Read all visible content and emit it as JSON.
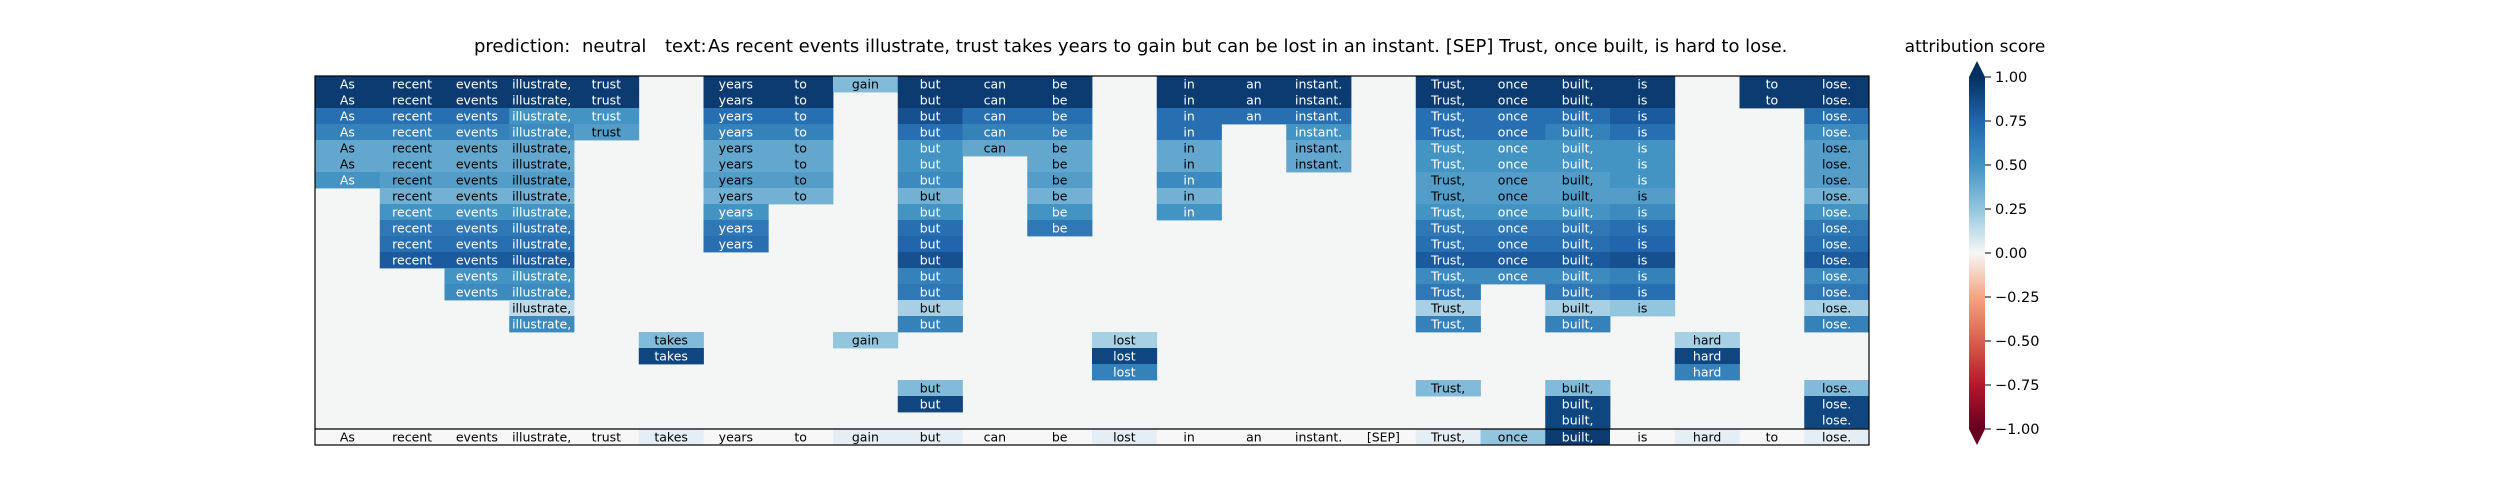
{
  "header": {
    "prediction_label": "prediction:",
    "prediction_value": "neutral",
    "text_label": "text:",
    "text_value": "As recent events illustrate, trust takes years to gain but can be lost in an instant. [SEP] Trust, once built, is hard to lose."
  },
  "chart_data": {
    "type": "heatmap",
    "tokens": [
      "As",
      "recent",
      "events",
      "illustrate,",
      "trust",
      "takes",
      "years",
      "to",
      "gain",
      "but",
      "can",
      "be",
      "lost",
      "in",
      "an",
      "instant.",
      "[SEP]",
      "Trust,",
      "once",
      "built,",
      "is",
      "hard",
      "to",
      "lose."
    ],
    "rows": [
      [
        0.95,
        0.95,
        0.95,
        0.95,
        0.95,
        0.0,
        0.95,
        0.95,
        0.3,
        0.95,
        0.95,
        0.95,
        0.0,
        0.95,
        0.95,
        0.95,
        0.0,
        0.95,
        0.95,
        0.95,
        0.95,
        0.0,
        0.95,
        0.95
      ],
      [
        0.95,
        0.95,
        0.95,
        0.95,
        0.95,
        0.0,
        0.95,
        0.95,
        0.0,
        0.95,
        0.95,
        0.95,
        0.0,
        0.95,
        0.95,
        0.95,
        0.0,
        0.95,
        0.95,
        0.95,
        0.95,
        0.0,
        0.95,
        0.95
      ],
      [
        0.7,
        0.7,
        0.7,
        0.5,
        0.5,
        0.0,
        0.7,
        0.7,
        0.0,
        0.85,
        0.7,
        0.7,
        0.0,
        0.7,
        0.7,
        0.7,
        0.0,
        0.7,
        0.7,
        0.7,
        0.8,
        0.0,
        0.0,
        0.7
      ],
      [
        0.6,
        0.6,
        0.6,
        0.55,
        0.45,
        0.0,
        0.6,
        0.6,
        0.0,
        0.7,
        0.6,
        0.6,
        0.0,
        0.7,
        0.0,
        0.5,
        0.0,
        0.7,
        0.7,
        0.6,
        0.7,
        0.0,
        0.0,
        0.55
      ],
      [
        0.4,
        0.4,
        0.4,
        0.4,
        0.0,
        0.0,
        0.4,
        0.4,
        0.0,
        0.5,
        0.4,
        0.4,
        0.0,
        0.4,
        0.0,
        0.4,
        0.0,
        0.5,
        0.5,
        0.5,
        0.5,
        0.0,
        0.0,
        0.45
      ],
      [
        0.4,
        0.4,
        0.4,
        0.4,
        0.0,
        0.0,
        0.4,
        0.4,
        0.0,
        0.5,
        0.0,
        0.4,
        0.0,
        0.4,
        0.0,
        0.4,
        0.0,
        0.5,
        0.5,
        0.5,
        0.5,
        0.0,
        0.0,
        0.45
      ],
      [
        0.5,
        0.45,
        0.45,
        0.45,
        0.0,
        0.0,
        0.45,
        0.45,
        0.0,
        0.55,
        0.0,
        0.45,
        0.0,
        0.55,
        0.0,
        0.0,
        0.0,
        0.45,
        0.45,
        0.45,
        0.5,
        0.0,
        0.0,
        0.45
      ],
      [
        0.0,
        0.35,
        0.35,
        0.35,
        0.0,
        0.0,
        0.35,
        0.35,
        0.0,
        0.35,
        0.0,
        0.35,
        0.0,
        0.35,
        0.0,
        0.0,
        0.0,
        0.45,
        0.45,
        0.45,
        0.45,
        0.0,
        0.0,
        0.35
      ],
      [
        0.0,
        0.5,
        0.5,
        0.5,
        0.0,
        0.0,
        0.5,
        0.0,
        0.0,
        0.5,
        0.0,
        0.5,
        0.0,
        0.5,
        0.0,
        0.0,
        0.0,
        0.5,
        0.5,
        0.5,
        0.55,
        0.0,
        0.0,
        0.5
      ],
      [
        0.0,
        0.65,
        0.65,
        0.65,
        0.0,
        0.0,
        0.65,
        0.0,
        0.0,
        0.7,
        0.0,
        0.65,
        0.0,
        0.0,
        0.0,
        0.0,
        0.0,
        0.65,
        0.65,
        0.65,
        0.7,
        0.0,
        0.0,
        0.65
      ],
      [
        0.0,
        0.7,
        0.7,
        0.7,
        0.0,
        0.0,
        0.7,
        0.0,
        0.0,
        0.75,
        0.0,
        0.0,
        0.0,
        0.0,
        0.0,
        0.0,
        0.0,
        0.7,
        0.7,
        0.7,
        0.75,
        0.0,
        0.0,
        0.7
      ],
      [
        0.0,
        0.8,
        0.8,
        0.8,
        0.0,
        0.0,
        0.0,
        0.0,
        0.0,
        0.85,
        0.0,
        0.0,
        0.0,
        0.0,
        0.0,
        0.0,
        0.0,
        0.8,
        0.8,
        0.8,
        0.85,
        0.0,
        0.0,
        0.8
      ],
      [
        0.0,
        0.0,
        0.5,
        0.5,
        0.0,
        0.0,
        0.0,
        0.0,
        0.0,
        0.6,
        0.0,
        0.0,
        0.0,
        0.0,
        0.0,
        0.0,
        0.0,
        0.55,
        0.55,
        0.55,
        0.6,
        0.0,
        0.0,
        0.55
      ],
      [
        0.0,
        0.0,
        0.55,
        0.55,
        0.0,
        0.0,
        0.0,
        0.0,
        0.0,
        0.65,
        0.0,
        0.0,
        0.0,
        0.0,
        0.0,
        0.0,
        0.0,
        0.65,
        0.0,
        0.65,
        0.7,
        0.0,
        0.0,
        0.65
      ],
      [
        0.0,
        0.0,
        0.0,
        0.15,
        0.0,
        0.0,
        0.0,
        0.0,
        0.0,
        0.2,
        0.0,
        0.0,
        0.0,
        0.0,
        0.0,
        0.0,
        0.0,
        0.2,
        0.0,
        0.2,
        0.25,
        0.0,
        0.0,
        0.2
      ],
      [
        0.0,
        0.0,
        0.0,
        0.55,
        0.0,
        0.0,
        0.0,
        0.0,
        0.0,
        0.6,
        0.0,
        0.0,
        0.0,
        0.0,
        0.0,
        0.0,
        0.0,
        0.6,
        0.0,
        0.6,
        0.0,
        0.0,
        0.0,
        0.6
      ],
      [
        0.0,
        0.0,
        0.0,
        0.0,
        0.0,
        0.3,
        0.0,
        0.0,
        0.25,
        0.0,
        0.0,
        0.0,
        0.2,
        0.0,
        0.0,
        0.0,
        0.0,
        0.0,
        0.0,
        0.0,
        0.0,
        0.2,
        0.0,
        0.0
      ],
      [
        0.0,
        0.0,
        0.0,
        0.0,
        0.0,
        0.9,
        0.0,
        0.0,
        0.0,
        0.0,
        0.0,
        0.0,
        0.9,
        0.0,
        0.0,
        0.0,
        0.0,
        0.0,
        0.0,
        0.0,
        0.0,
        0.9,
        0.0,
        0.0
      ],
      [
        0.0,
        0.0,
        0.0,
        0.0,
        0.0,
        0.0,
        0.0,
        0.0,
        0.0,
        0.0,
        0.0,
        0.0,
        0.6,
        0.0,
        0.0,
        0.0,
        0.0,
        0.0,
        0.0,
        0.0,
        0.0,
        0.6,
        0.0,
        0.0
      ],
      [
        0.0,
        0.0,
        0.0,
        0.0,
        0.0,
        0.0,
        0.0,
        0.0,
        0.0,
        0.3,
        0.0,
        0.0,
        0.0,
        0.0,
        0.0,
        0.0,
        0.0,
        0.3,
        0.0,
        0.3,
        0.0,
        0.0,
        0.0,
        0.3
      ],
      [
        0.0,
        0.0,
        0.0,
        0.0,
        0.0,
        0.0,
        0.0,
        0.0,
        0.0,
        0.9,
        0.0,
        0.0,
        0.0,
        0.0,
        0.0,
        0.0,
        0.0,
        0.0,
        0.0,
        0.9,
        0.0,
        0.0,
        0.0,
        0.9
      ],
      [
        0.0,
        0.0,
        0.0,
        0.0,
        0.0,
        0.0,
        0.0,
        0.0,
        0.0,
        0.0,
        0.0,
        0.0,
        0.0,
        0.0,
        0.0,
        0.0,
        0.0,
        0.0,
        0.0,
        0.9,
        0.0,
        0.0,
        0.0,
        0.9
      ]
    ],
    "bottom_row": [
      0.0,
      0.0,
      0.0,
      0.0,
      0.0,
      0.05,
      0.0,
      0.0,
      0.05,
      0.05,
      0.0,
      0.0,
      0.05,
      0.0,
      0.0,
      0.0,
      0.0,
      0.05,
      0.25,
      0.95,
      0.0,
      0.05,
      0.0,
      0.05
    ],
    "colorbar": {
      "label": "attribution score",
      "ticks": [
        "1.00",
        "0.75",
        "0.50",
        "0.25",
        "0.00",
        "−0.25",
        "−0.50",
        "−0.75",
        "−1.00"
      ],
      "range": [
        -1.0,
        1.0
      ],
      "colormap": "RdBu"
    },
    "grid": false
  }
}
